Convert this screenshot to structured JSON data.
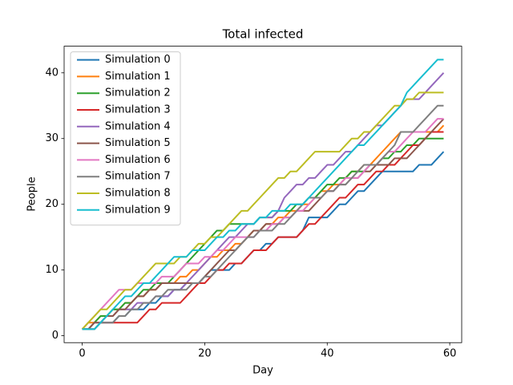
{
  "chart_data": {
    "type": "line",
    "title": "Total infected",
    "x_label": "Day",
    "y_label": "People",
    "x": [
      0,
      1,
      2,
      3,
      4,
      5,
      6,
      7,
      8,
      9,
      10,
      11,
      12,
      13,
      14,
      15,
      16,
      17,
      18,
      19,
      20,
      21,
      22,
      23,
      24,
      25,
      26,
      27,
      28,
      29,
      30,
      31,
      32,
      33,
      34,
      35,
      36,
      37,
      38,
      39,
      40,
      41,
      42,
      43,
      44,
      45,
      46,
      47,
      48,
      49,
      50,
      51,
      52,
      53,
      54,
      55,
      56,
      57,
      58,
      59
    ],
    "xlim": [
      -2.95,
      61.95
    ],
    "xticks": [
      0,
      20,
      40,
      60
    ],
    "ylim": [
      -1.05,
      44.05
    ],
    "yticks": [
      0,
      10,
      20,
      30,
      40
    ],
    "legend": "upper left",
    "series": [
      {
        "name": "Simulation 0",
        "color": "#1f77b4",
        "values": [
          1,
          1,
          1,
          2,
          2,
          2,
          3,
          3,
          4,
          4,
          4,
          5,
          5,
          6,
          6,
          7,
          7,
          8,
          8,
          8,
          9,
          10,
          10,
          10,
          10,
          11,
          11,
          12,
          13,
          13,
          14,
          14,
          15,
          15,
          15,
          15,
          16,
          18,
          18,
          18,
          18,
          19,
          20,
          20,
          21,
          22,
          22,
          23,
          24,
          25,
          25,
          25,
          25,
          25,
          25,
          26,
          26,
          26,
          27,
          28
        ]
      },
      {
        "name": "Simulation 1",
        "color": "#ff7f0e",
        "values": [
          1,
          2,
          2,
          3,
          3,
          4,
          4,
          5,
          5,
          6,
          6,
          7,
          7,
          8,
          8,
          8,
          9,
          9,
          10,
          10,
          11,
          12,
          12,
          13,
          13,
          14,
          14,
          15,
          16,
          16,
          17,
          17,
          18,
          18,
          19,
          19,
          20,
          20,
          21,
          22,
          22,
          23,
          23,
          24,
          25,
          25,
          26,
          26,
          27,
          28,
          29,
          30,
          31,
          31,
          31,
          31,
          31,
          31,
          31,
          32
        ]
      },
      {
        "name": "Simulation 2",
        "color": "#2ca02c",
        "values": [
          1,
          1,
          2,
          3,
          3,
          4,
          4,
          5,
          5,
          6,
          7,
          7,
          8,
          8,
          8,
          9,
          10,
          11,
          12,
          13,
          14,
          15,
          16,
          16,
          17,
          17,
          17,
          17,
          17,
          18,
          18,
          18,
          19,
          19,
          19,
          20,
          20,
          21,
          21,
          22,
          23,
          23,
          24,
          24,
          25,
          25,
          25,
          26,
          26,
          27,
          27,
          28,
          28,
          29,
          29,
          30,
          30,
          30,
          30,
          30
        ]
      },
      {
        "name": "Simulation 3",
        "color": "#d62728",
        "values": [
          1,
          1,
          1,
          2,
          2,
          2,
          2,
          2,
          2,
          2,
          3,
          4,
          4,
          5,
          5,
          5,
          5,
          6,
          7,
          8,
          8,
          9,
          10,
          10,
          11,
          11,
          11,
          12,
          13,
          13,
          13,
          14,
          15,
          15,
          15,
          15,
          16,
          17,
          17,
          18,
          19,
          20,
          21,
          21,
          22,
          23,
          23,
          24,
          25,
          25,
          26,
          26,
          27,
          28,
          29,
          29,
          30,
          31,
          31,
          31
        ]
      },
      {
        "name": "Simulation 4",
        "color": "#9467bd",
        "values": [
          1,
          1,
          2,
          2,
          3,
          3,
          4,
          4,
          4,
          5,
          5,
          5,
          6,
          6,
          6,
          7,
          7,
          8,
          9,
          10,
          11,
          12,
          13,
          14,
          15,
          15,
          16,
          17,
          17,
          18,
          18,
          18,
          19,
          21,
          22,
          23,
          23,
          24,
          24,
          25,
          26,
          26,
          27,
          28,
          28,
          29,
          30,
          31,
          32,
          32,
          33,
          34,
          35,
          36,
          36,
          36,
          37,
          38,
          39,
          40
        ]
      },
      {
        "name": "Simulation 5",
        "color": "#8c564b",
        "values": [
          1,
          1,
          2,
          2,
          3,
          3,
          4,
          4,
          5,
          6,
          6,
          7,
          7,
          8,
          8,
          8,
          8,
          8,
          8,
          8,
          9,
          10,
          11,
          12,
          13,
          13,
          14,
          15,
          16,
          16,
          17,
          17,
          17,
          18,
          18,
          19,
          19,
          19,
          20,
          21,
          22,
          22,
          23,
          23,
          24,
          24,
          25,
          25,
          26,
          26,
          26,
          27,
          27,
          27,
          28,
          29,
          30,
          31,
          32,
          33
        ]
      },
      {
        "name": "Simulation 6",
        "color": "#e377c2",
        "values": [
          1,
          2,
          3,
          4,
          5,
          6,
          7,
          7,
          7,
          8,
          8,
          8,
          8,
          9,
          9,
          9,
          10,
          11,
          11,
          11,
          12,
          12,
          13,
          13,
          14,
          15,
          15,
          15,
          15,
          16,
          16,
          17,
          17,
          18,
          18,
          19,
          19,
          20,
          21,
          21,
          22,
          22,
          23,
          24,
          24,
          24,
          25,
          26,
          26,
          27,
          28,
          28,
          29,
          30,
          31,
          31,
          31,
          32,
          33,
          33
        ]
      },
      {
        "name": "Simulation 7",
        "color": "#7f7f7f",
        "values": [
          1,
          1,
          1,
          2,
          2,
          2,
          3,
          3,
          4,
          4,
          5,
          5,
          6,
          6,
          7,
          7,
          7,
          7,
          8,
          8,
          9,
          9,
          10,
          11,
          12,
          13,
          14,
          15,
          15,
          16,
          16,
          16,
          17,
          17,
          18,
          19,
          20,
          21,
          21,
          21,
          22,
          22,
          23,
          23,
          24,
          25,
          26,
          26,
          26,
          27,
          28,
          29,
          31,
          31,
          31,
          32,
          33,
          34,
          35,
          35
        ]
      },
      {
        "name": "Simulation 8",
        "color": "#bcbd22",
        "values": [
          1,
          2,
          3,
          4,
          4,
          5,
          6,
          7,
          7,
          8,
          9,
          10,
          11,
          11,
          11,
          11,
          12,
          12,
          13,
          14,
          14,
          15,
          15,
          16,
          17,
          18,
          19,
          19,
          20,
          21,
          22,
          23,
          24,
          24,
          25,
          25,
          26,
          27,
          28,
          28,
          28,
          28,
          28,
          29,
          30,
          30,
          31,
          31,
          32,
          33,
          34,
          35,
          35,
          36,
          36,
          37,
          37,
          37,
          37,
          37
        ]
      },
      {
        "name": "Simulation 9",
        "color": "#17becf",
        "values": [
          1,
          1,
          1,
          2,
          3,
          4,
          5,
          6,
          6,
          7,
          8,
          8,
          9,
          10,
          11,
          12,
          12,
          12,
          13,
          13,
          13,
          14,
          15,
          15,
          16,
          16,
          17,
          17,
          17,
          18,
          18,
          19,
          19,
          19,
          20,
          20,
          20,
          21,
          22,
          23,
          24,
          25,
          26,
          27,
          28,
          29,
          29,
          30,
          31,
          32,
          33,
          34,
          35,
          37,
          38,
          39,
          40,
          41,
          42,
          42
        ]
      }
    ]
  }
}
